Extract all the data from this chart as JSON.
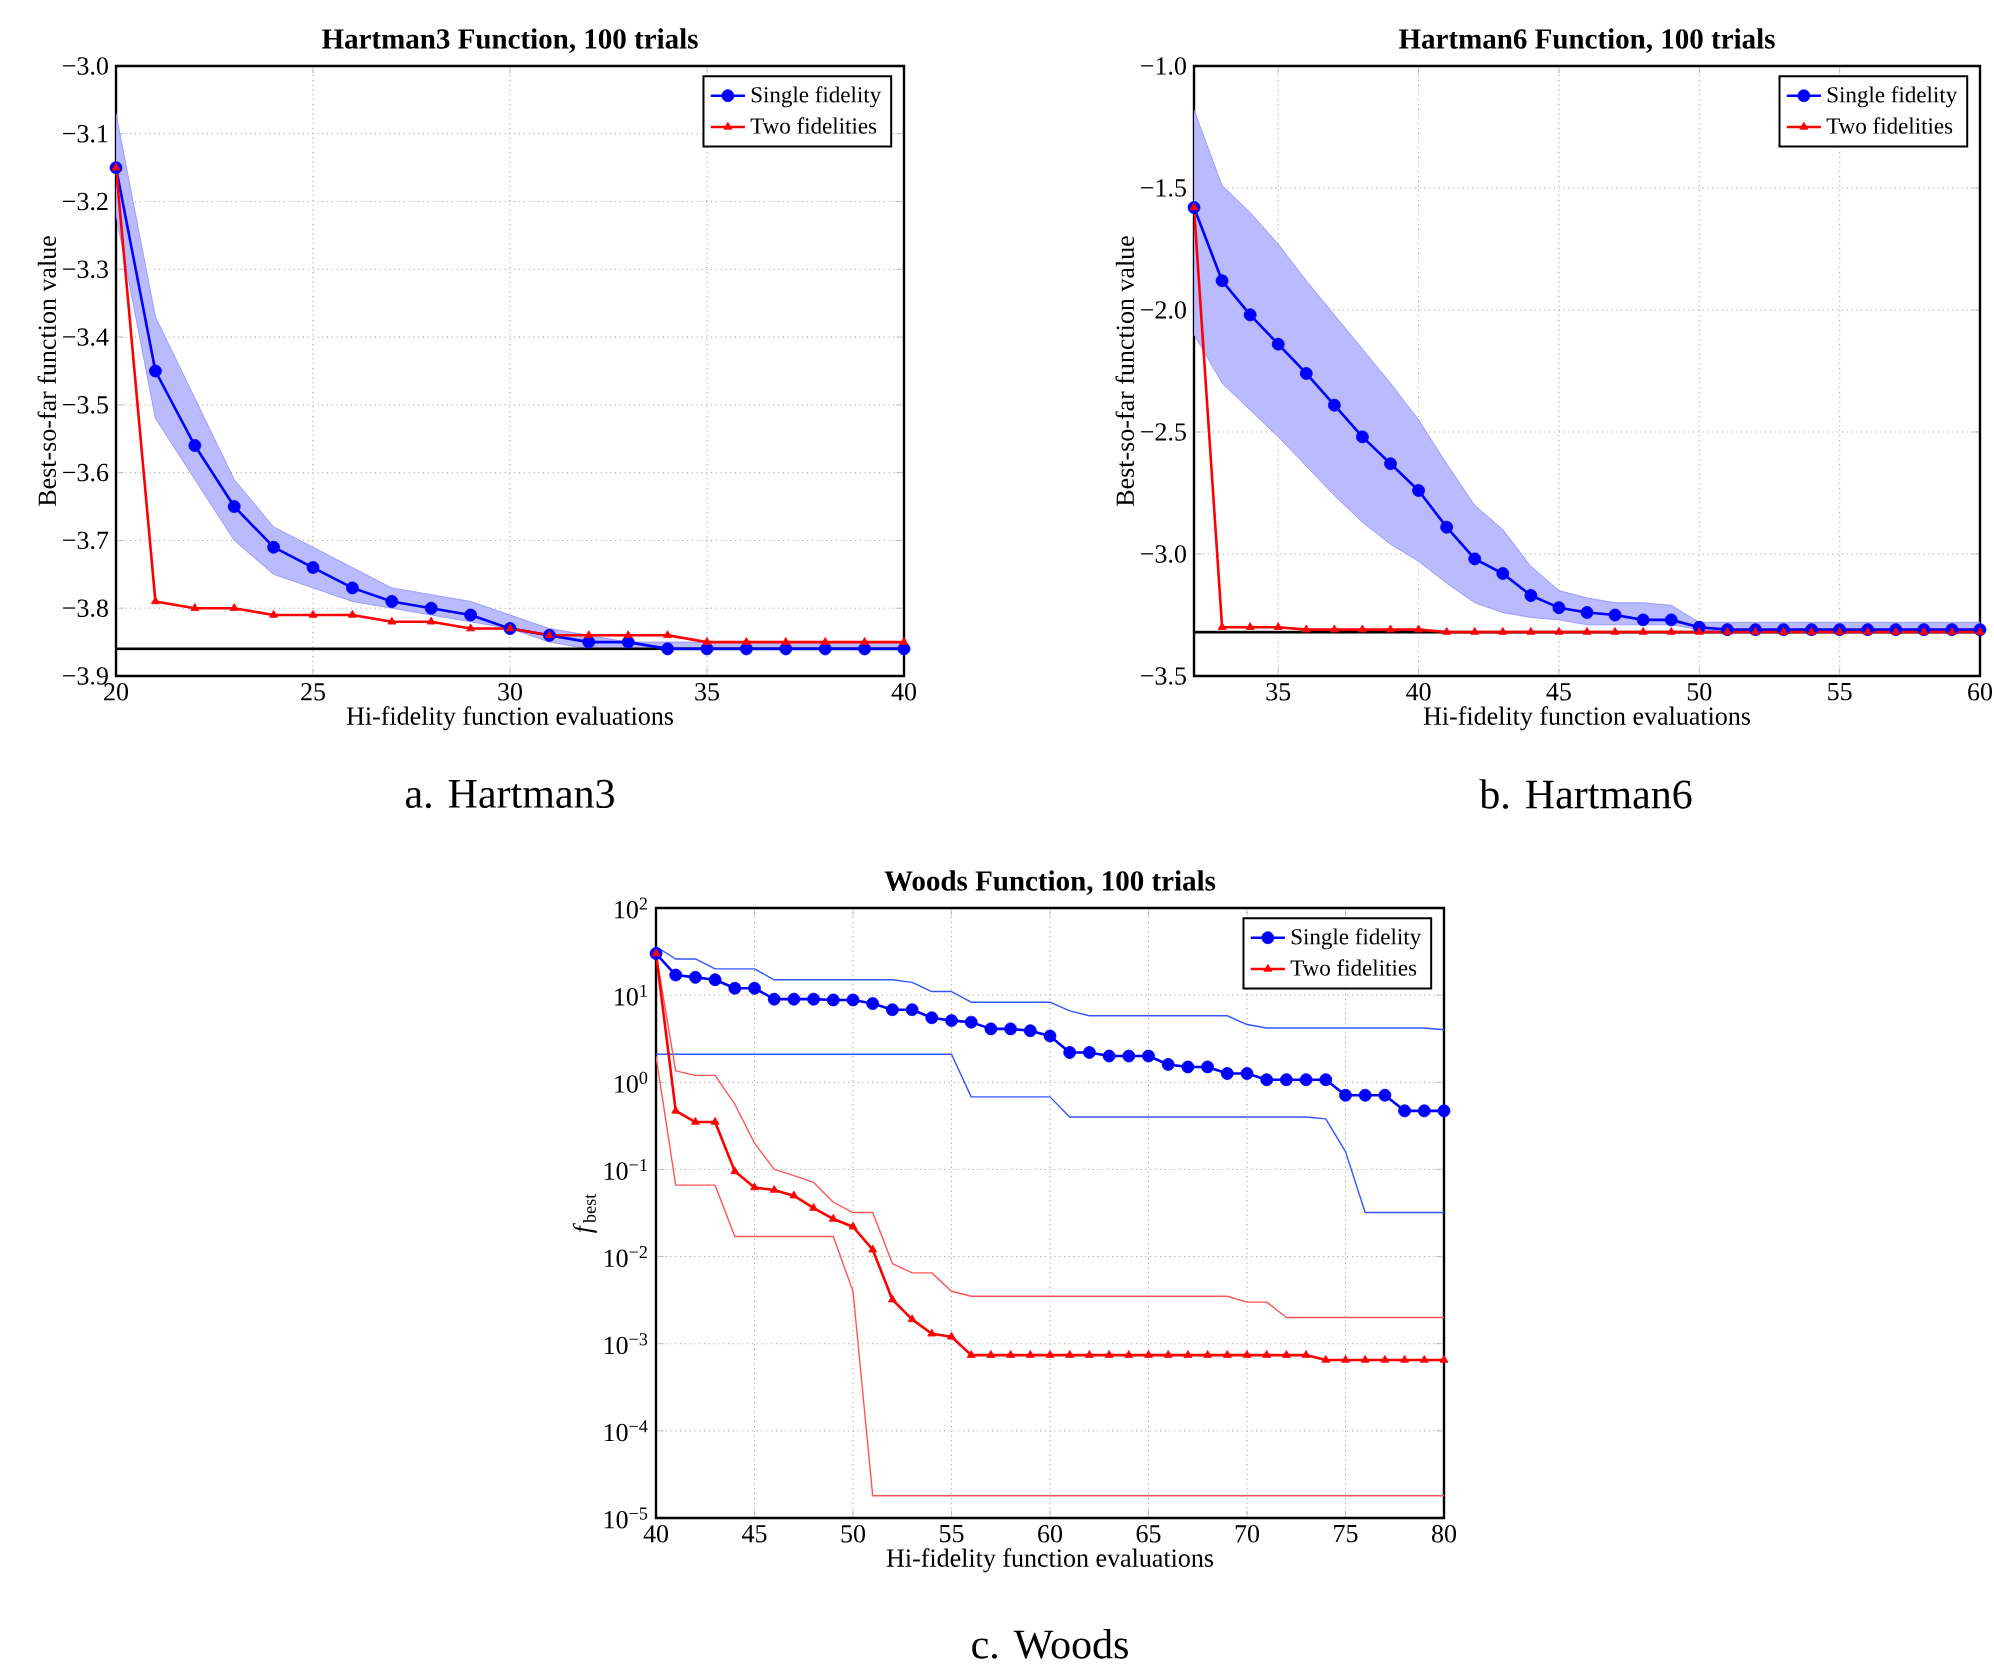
{
  "chart_data": [
    {
      "type": "line",
      "title": "Hartman3 Function, 100 trials",
      "xlabel": "Hi-fidelity function evaluations",
      "ylabel": "Best-so-far function value",
      "annotations": [
        "a. Hartman3"
      ],
      "xlim": [
        20,
        40
      ],
      "xticks": [
        20,
        25,
        30,
        35,
        40
      ],
      "ylim": [
        -3.9,
        -3.0
      ],
      "yticks": [
        {
          "value": -3.9,
          "label": "−3.9"
        },
        {
          "value": -3.8,
          "label": "−3.8"
        },
        {
          "value": -3.7,
          "label": "−3.7"
        },
        {
          "value": -3.6,
          "label": "−3.6"
        },
        {
          "value": -3.5,
          "label": "−3.5"
        },
        {
          "value": -3.4,
          "label": "−3.4"
        },
        {
          "value": -3.3,
          "label": "−3.3"
        },
        {
          "value": -3.2,
          "label": "−3.2"
        },
        {
          "value": -3.1,
          "label": "−3.1"
        },
        {
          "value": -3.0,
          "label": "−3.0"
        }
      ],
      "grid": true,
      "legend": "top right",
      "ref_lines": [
        {
          "axis": "y",
          "value": -3.86,
          "color": "#000000"
        }
      ],
      "x": [
        20,
        21,
        22,
        23,
        24,
        25,
        26,
        27,
        28,
        29,
        30,
        31,
        32,
        33,
        34,
        35,
        36,
        37,
        38,
        39,
        40
      ],
      "series": [
        {
          "name": "Single fidelity",
          "color": "#0000ff",
          "marker": "circle",
          "values": [
            -3.15,
            -3.45,
            -3.56,
            -3.65,
            -3.71,
            -3.74,
            -3.77,
            -3.79,
            -3.8,
            -3.81,
            -3.83,
            -3.84,
            -3.85,
            -3.85,
            -3.86,
            -3.86,
            -3.86,
            -3.86,
            -3.86,
            -3.86,
            -3.86
          ],
          "upper": [
            -3.07,
            -3.37,
            -3.49,
            -3.61,
            -3.68,
            -3.71,
            -3.74,
            -3.77,
            -3.78,
            -3.79,
            -3.81,
            -3.83,
            -3.84,
            -3.85,
            -3.85,
            -3.85,
            -3.85,
            -3.85,
            -3.85,
            -3.85,
            -3.85
          ],
          "lower": [
            -3.22,
            -3.52,
            -3.61,
            -3.7,
            -3.75,
            -3.77,
            -3.79,
            -3.8,
            -3.81,
            -3.82,
            -3.83,
            -3.85,
            -3.86,
            -3.86,
            -3.86,
            -3.86,
            -3.86,
            -3.86,
            -3.86,
            -3.86,
            -3.86
          ]
        },
        {
          "name": "Two fidelities",
          "color": "#ff0000",
          "marker": "triangle",
          "values": [
            -3.15,
            -3.79,
            -3.8,
            -3.8,
            -3.81,
            -3.81,
            -3.81,
            -3.82,
            -3.82,
            -3.83,
            -3.83,
            -3.84,
            -3.84,
            -3.84,
            -3.84,
            -3.85,
            -3.85,
            -3.85,
            -3.85,
            -3.85,
            -3.85
          ]
        }
      ]
    },
    {
      "type": "line",
      "title": "Hartman6 Function, 100 trials",
      "xlabel": "Hi-fidelity function evaluations",
      "ylabel": "Best-so-far function value",
      "annotations": [
        "b. Hartman6"
      ],
      "xlim": [
        32,
        60
      ],
      "xticks": [
        35,
        40,
        45,
        50,
        55,
        60
      ],
      "ylim": [
        -3.5,
        -1.0
      ],
      "yticks": [
        {
          "value": -3.5,
          "label": "−3.5"
        },
        {
          "value": -3.0,
          "label": "−3.0"
        },
        {
          "value": -2.5,
          "label": "−2.5"
        },
        {
          "value": -2.0,
          "label": "−2.0"
        },
        {
          "value": -1.5,
          "label": "−1.5"
        },
        {
          "value": -1.0,
          "label": "−1.0"
        }
      ],
      "grid": true,
      "legend": "top right",
      "ref_lines": [
        {
          "axis": "y",
          "value": -3.32,
          "color": "#000000"
        }
      ],
      "x": [
        32,
        33,
        34,
        35,
        36,
        37,
        38,
        39,
        40,
        41,
        42,
        43,
        44,
        45,
        46,
        47,
        48,
        49,
        50,
        51,
        52,
        53,
        54,
        55,
        56,
        57,
        58,
        59,
        60
      ],
      "series": [
        {
          "name": "Single fidelity",
          "color": "#0000ff",
          "marker": "circle",
          "values": [
            -1.58,
            -1.88,
            -2.02,
            -2.14,
            -2.26,
            -2.39,
            -2.52,
            -2.63,
            -2.74,
            -2.89,
            -3.02,
            -3.08,
            -3.17,
            -3.22,
            -3.24,
            -3.25,
            -3.27,
            -3.27,
            -3.3,
            -3.31,
            -3.31,
            -3.31,
            -3.31,
            -3.31,
            -3.31,
            -3.31,
            -3.31,
            -3.31,
            -3.31
          ],
          "upper": [
            -1.18,
            -1.49,
            -1.6,
            -1.73,
            -1.88,
            -2.02,
            -2.16,
            -2.3,
            -2.45,
            -2.63,
            -2.8,
            -2.9,
            -3.05,
            -3.15,
            -3.18,
            -3.2,
            -3.2,
            -3.21,
            -3.28,
            -3.28,
            -3.28,
            -3.28,
            -3.28,
            -3.28,
            -3.28,
            -3.28,
            -3.28,
            -3.28,
            -3.28
          ],
          "lower": [
            -2.1,
            -2.3,
            -2.41,
            -2.52,
            -2.64,
            -2.76,
            -2.87,
            -2.96,
            -3.03,
            -3.12,
            -3.2,
            -3.24,
            -3.26,
            -3.27,
            -3.29,
            -3.29,
            -3.29,
            -3.29,
            -3.31,
            -3.32,
            -3.32,
            -3.32,
            -3.32,
            -3.32,
            -3.32,
            -3.32,
            -3.32,
            -3.32,
            -3.32
          ]
        },
        {
          "name": "Two fidelities",
          "color": "#ff0000",
          "marker": "triangle",
          "values": [
            -1.58,
            -3.3,
            -3.3,
            -3.3,
            -3.31,
            -3.31,
            -3.31,
            -3.31,
            -3.31,
            -3.32,
            -3.32,
            -3.32,
            -3.32,
            -3.32,
            -3.32,
            -3.32,
            -3.32,
            -3.32,
            -3.32,
            -3.32,
            -3.32,
            -3.32,
            -3.32,
            -3.32,
            -3.32,
            -3.32,
            -3.32,
            -3.32,
            -3.32
          ]
        }
      ]
    },
    {
      "type": "line",
      "title": "Woods Function, 100 trials",
      "xlabel": "Hi-fidelity function evaluations",
      "ylabel": "*f*$_{best}$",
      "annotations": [
        "c. Woods"
      ],
      "log": true,
      "xlim": [
        40,
        80
      ],
      "xticks": [
        40,
        45,
        50,
        55,
        60,
        65,
        70,
        75,
        80
      ],
      "ylim": [
        1e-05,
        100
      ],
      "yticks": [
        {
          "value": 1e-05,
          "label": "10$^{−5}$"
        },
        {
          "value": 0.0001,
          "label": "10$^{−4}$"
        },
        {
          "value": 0.001,
          "label": "10$^{−3}$"
        },
        {
          "value": 0.01,
          "label": "10$^{−2}$"
        },
        {
          "value": 0.1,
          "label": "10$^{−1}$"
        },
        {
          "value": 1,
          "label": "10$^{0}$"
        },
        {
          "value": 10,
          "label": "10$^{1}$"
        },
        {
          "value": 100,
          "label": "10$^{2}$"
        }
      ],
      "grid": true,
      "legend": "top right",
      "x": [
        40,
        41,
        42,
        43,
        44,
        45,
        46,
        47,
        48,
        49,
        50,
        51,
        52,
        53,
        54,
        55,
        56,
        57,
        58,
        59,
        60,
        61,
        62,
        63,
        64,
        65,
        66,
        67,
        68,
        69,
        70,
        71,
        72,
        73,
        74,
        75,
        76,
        77,
        78,
        79,
        80
      ],
      "series": [
        {
          "color": "#3355ff",
          "marker": "none",
          "values": [
            36,
            26,
            26,
            20,
            20,
            20,
            15,
            15,
            15,
            15,
            15,
            15,
            15,
            14,
            11,
            11,
            8.3,
            8.3,
            8.3,
            8.3,
            8.3,
            6.6,
            5.8,
            5.8,
            5.8,
            5.8,
            5.8,
            5.8,
            5.8,
            5.8,
            4.6,
            4.2,
            4.2,
            4.2,
            4.2,
            4.2,
            4.2,
            4.2,
            4.2,
            4.2,
            4.0
          ]
        },
        {
          "color": "#3355ff",
          "marker": "none",
          "values": [
            2.1,
            2.1,
            2.1,
            2.1,
            2.1,
            2.1,
            2.1,
            2.1,
            2.1,
            2.1,
            2.1,
            2.1,
            2.1,
            2.1,
            2.1,
            2.1,
            0.68,
            0.68,
            0.68,
            0.68,
            0.68,
            0.4,
            0.4,
            0.4,
            0.4,
            0.4,
            0.4,
            0.4,
            0.4,
            0.4,
            0.4,
            0.4,
            0.4,
            0.4,
            0.38,
            0.16,
            0.032,
            0.032,
            0.032,
            0.032,
            0.032
          ]
        },
        {
          "color": "#ff5555",
          "marker": "none",
          "values": [
            30,
            1.35,
            1.2,
            1.2,
            0.56,
            0.2,
            0.1,
            0.085,
            0.071,
            0.042,
            0.032,
            0.032,
            0.0083,
            0.0065,
            0.0065,
            0.004,
            0.0035,
            0.0035,
            0.0035,
            0.0035,
            0.0035,
            0.0035,
            0.0035,
            0.0035,
            0.0035,
            0.0035,
            0.0035,
            0.0035,
            0.0035,
            0.0035,
            0.003,
            0.003,
            0.002,
            0.002,
            0.002,
            0.002,
            0.002,
            0.002,
            0.002,
            0.002,
            0.002
          ]
        },
        {
          "color": "#ff5555",
          "marker": "none",
          "values": [
            2,
            0.066,
            0.066,
            0.066,
            0.017,
            0.017,
            0.017,
            0.017,
            0.017,
            0.017,
            0.004,
            1.8e-05,
            1.8e-05,
            1.8e-05,
            1.8e-05,
            1.8e-05,
            1.8e-05,
            1.8e-05,
            1.8e-05,
            1.8e-05,
            1.8e-05,
            1.8e-05,
            1.8e-05,
            1.8e-05,
            1.8e-05,
            1.8e-05,
            1.8e-05,
            1.8e-05,
            1.8e-05,
            1.8e-05,
            1.8e-05,
            1.8e-05,
            1.8e-05,
            1.8e-05,
            1.8e-05,
            1.8e-05,
            1.8e-05,
            1.8e-05,
            1.8e-05,
            1.8e-05,
            1.8e-05
          ]
        },
        {
          "name": "Single fidelity",
          "color": "#0000ff",
          "marker": "circle",
          "values": [
            30,
            17,
            16,
            15,
            12,
            12,
            9,
            9,
            9,
            8.8,
            8.8,
            8,
            6.8,
            6.8,
            5.5,
            5.1,
            4.9,
            4.1,
            4.1,
            3.9,
            3.4,
            2.2,
            2.2,
            2,
            2,
            2,
            1.6,
            1.5,
            1.5,
            1.26,
            1.26,
            1.07,
            1.07,
            1.07,
            1.07,
            0.71,
            0.71,
            0.71,
            0.47,
            0.47,
            0.47
          ]
        },
        {
          "name": "Two fidelities",
          "color": "#ff0000",
          "marker": "triangle",
          "values": [
            30,
            0.47,
            0.35,
            0.35,
            0.095,
            0.062,
            0.058,
            0.05,
            0.036,
            0.027,
            0.022,
            0.012,
            0.0032,
            0.0019,
            0.0013,
            0.0012,
            0.00074,
            0.00074,
            0.00074,
            0.00074,
            0.00074,
            0.00074,
            0.00074,
            0.00074,
            0.00074,
            0.00074,
            0.00074,
            0.00074,
            0.00074,
            0.00074,
            0.00074,
            0.00074,
            0.00074,
            0.00074,
            0.00065,
            0.00065,
            0.00065,
            0.00065,
            0.00065,
            0.00065,
            0.00065
          ]
        }
      ]
    }
  ]
}
